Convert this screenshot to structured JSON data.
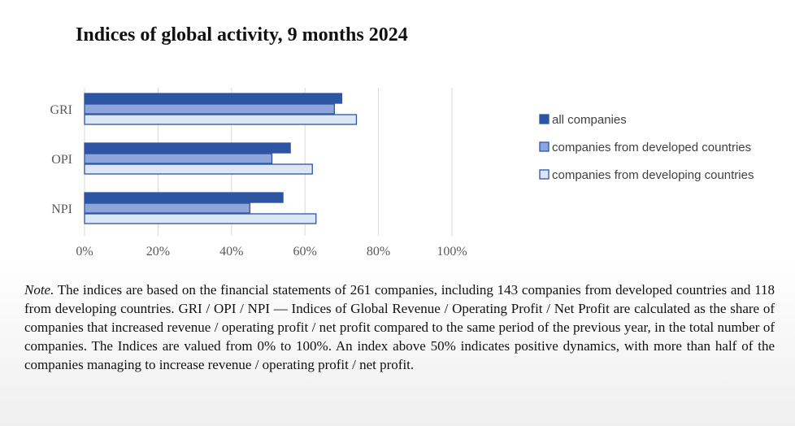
{
  "title": "Indices of global activity, 9 months 2024",
  "note": {
    "label": "Note.",
    "text": " The indices are based on the financial statements of 261 companies, including 143 companies from developed countries and 118 from developing countries. GRI / OPI / NPI — Indices of Global Revenue / Operating Profit / Net Profit are calculated as the share of companies that increased revenue / operating profit / net profit compared to the same period of the previous year, in the total number of companies. The Indices are valued from 0% to 100%. An index above 50% indicates positive dynamics, with more than half of the companies managing to increase revenue / operating profit / net profit."
  },
  "chart_data": {
    "type": "bar",
    "orientation": "horizontal",
    "categories": [
      "GRI",
      "OPI",
      "NPI"
    ],
    "series": [
      {
        "name": "all companies",
        "values": [
          70,
          56,
          54
        ],
        "color": "#2e55a4"
      },
      {
        "name": "companies from developed countries",
        "values": [
          68,
          51,
          45
        ],
        "color": "#8ea5dc"
      },
      {
        "name": "companies from developing countries",
        "values": [
          74,
          62,
          63
        ],
        "color": "#dbe6f6"
      }
    ],
    "bar_border_color": "#2e55a4",
    "xlim": [
      0,
      100
    ],
    "xticks": [
      "0%",
      "20%",
      "40%",
      "60%",
      "80%",
      "100%"
    ],
    "grid": true,
    "legend_position": "right"
  }
}
